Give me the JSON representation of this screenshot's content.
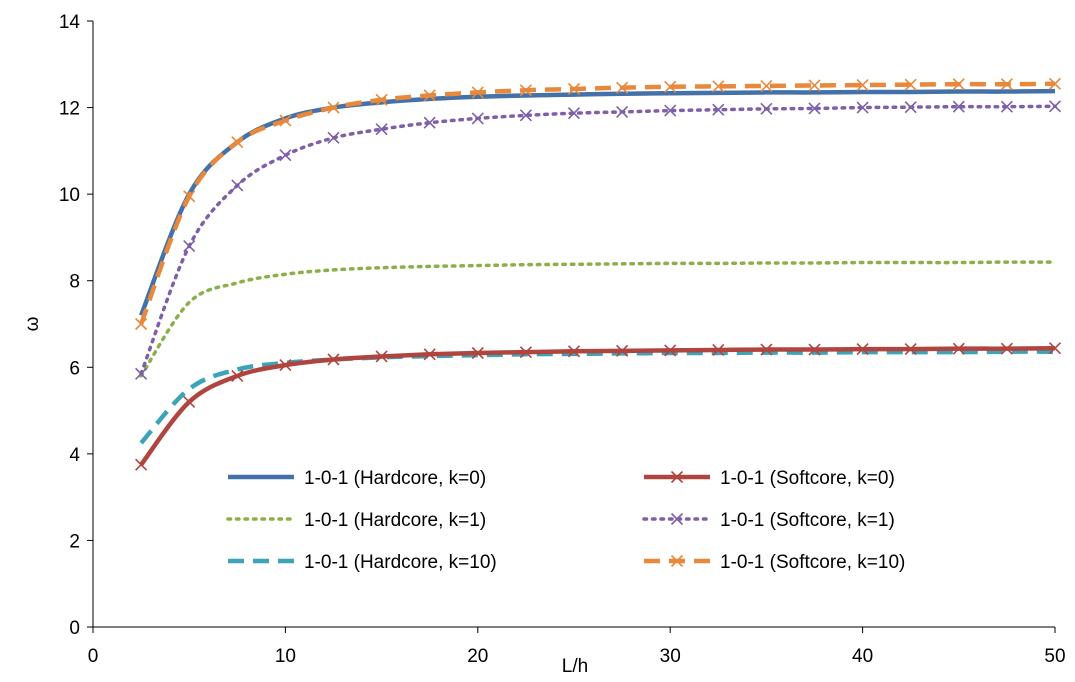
{
  "chart_data": {
    "type": "line",
    "title": "",
    "xlabel": "L/h",
    "ylabel": "ω",
    "xlim": [
      0,
      50
    ],
    "ylim": [
      0,
      14
    ],
    "xticks": [
      0,
      10,
      20,
      30,
      40,
      50
    ],
    "yticks": [
      0,
      2,
      4,
      6,
      8,
      10,
      12,
      14
    ],
    "grid": false,
    "legend_position": "bottom-center",
    "x": [
      2.5,
      5,
      7.5,
      10,
      12.5,
      15,
      17.5,
      20,
      22.5,
      25,
      27.5,
      30,
      32.5,
      35,
      37.5,
      40,
      42.5,
      45,
      47.5,
      50
    ],
    "series": [
      {
        "name": "1-0-1 (Hardcore, k=0)",
        "color": "#4472A8",
        "style": "solid",
        "marker": "none",
        "values": [
          7.2,
          10.0,
          11.2,
          11.75,
          12.0,
          12.12,
          12.2,
          12.25,
          12.28,
          12.3,
          12.32,
          12.33,
          12.34,
          12.35,
          12.35,
          12.36,
          12.36,
          12.37,
          12.37,
          12.38
        ]
      },
      {
        "name": "1-0-1 (Hardcore, k=1)",
        "color": "#8BB04A",
        "style": "dotted",
        "marker": "none",
        "values": [
          5.8,
          7.5,
          7.95,
          8.15,
          8.25,
          8.3,
          8.33,
          8.35,
          8.37,
          8.38,
          8.39,
          8.4,
          8.4,
          8.41,
          8.41,
          8.42,
          8.42,
          8.42,
          8.43,
          8.43
        ]
      },
      {
        "name": "1-0-1 (Hardcore, k=10)",
        "color": "#3CA3B8",
        "style": "dashed",
        "marker": "none",
        "values": [
          4.25,
          5.5,
          5.95,
          6.1,
          6.18,
          6.23,
          6.26,
          6.28,
          6.3,
          6.31,
          6.32,
          6.33,
          6.33,
          6.34,
          6.34,
          6.35,
          6.35,
          6.35,
          6.36,
          6.36
        ]
      },
      {
        "name": "1-0-1 (Softcore, k=0)",
        "color": "#B04540",
        "style": "solid",
        "marker": "x",
        "values": [
          3.75,
          5.2,
          5.8,
          6.05,
          6.18,
          6.25,
          6.3,
          6.33,
          6.35,
          6.37,
          6.38,
          6.39,
          6.4,
          6.41,
          6.41,
          6.42,
          6.42,
          6.43,
          6.43,
          6.44
        ]
      },
      {
        "name": "1-0-1 (Softcore, k=1)",
        "color": "#7F5FA8",
        "style": "dotted",
        "marker": "x",
        "values": [
          5.85,
          8.8,
          10.2,
          10.9,
          11.3,
          11.5,
          11.65,
          11.75,
          11.82,
          11.87,
          11.9,
          11.93,
          11.95,
          11.97,
          11.98,
          12.0,
          12.01,
          12.02,
          12.02,
          12.03
        ]
      },
      {
        "name": "1-0-1 (Softcore, k=10)",
        "color": "#E8883A",
        "style": "dashed",
        "marker": "x",
        "values": [
          7.0,
          9.95,
          11.2,
          11.7,
          12.0,
          12.18,
          12.28,
          12.35,
          12.4,
          12.43,
          12.46,
          12.48,
          12.49,
          12.5,
          12.51,
          12.52,
          12.53,
          12.54,
          12.54,
          12.55
        ]
      }
    ]
  }
}
